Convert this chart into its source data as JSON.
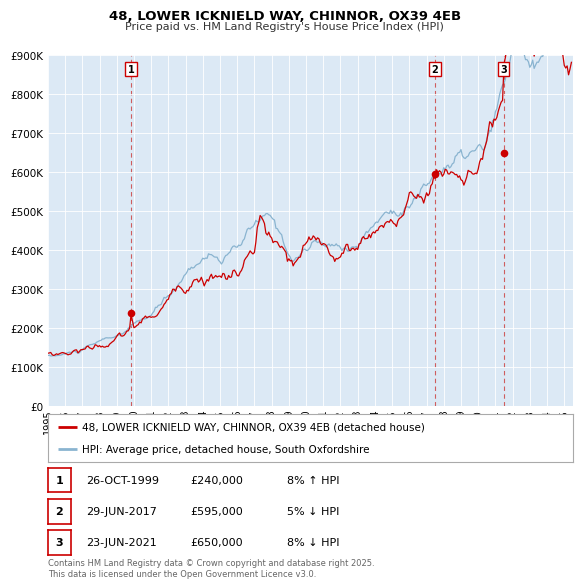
{
  "title": "48, LOWER ICKNIELD WAY, CHINNOR, OX39 4EB",
  "subtitle": "Price paid vs. HM Land Registry's House Price Index (HPI)",
  "fig_bg_color": "#ffffff",
  "plot_bg_color": "#dce9f5",
  "ylim": [
    0,
    900000
  ],
  "yticks": [
    0,
    100000,
    200000,
    300000,
    400000,
    500000,
    600000,
    700000,
    800000,
    900000
  ],
  "ytick_labels": [
    "£0",
    "£100K",
    "£200K",
    "£300K",
    "£400K",
    "£500K",
    "£600K",
    "£700K",
    "£800K",
    "£900K"
  ],
  "xlim_start": 1995.0,
  "xlim_end": 2025.5,
  "xtick_years": [
    1995,
    1996,
    1997,
    1998,
    1999,
    2000,
    2001,
    2002,
    2003,
    2004,
    2005,
    2006,
    2007,
    2008,
    2009,
    2010,
    2011,
    2012,
    2013,
    2014,
    2015,
    2016,
    2017,
    2018,
    2019,
    2020,
    2021,
    2022,
    2023,
    2024,
    2025
  ],
  "sale_color": "#cc0000",
  "hpi_color": "#8ab4d0",
  "sale_label": "48, LOWER ICKNIELD WAY, CHINNOR, OX39 4EB (detached house)",
  "hpi_label": "HPI: Average price, detached house, South Oxfordshire",
  "transactions": [
    {
      "num": 1,
      "date_dec": 1999.82,
      "price": 240000,
      "date_str": "26-OCT-1999",
      "pct": "8%",
      "dir": "↑"
    },
    {
      "num": 2,
      "date_dec": 2017.49,
      "price": 595000,
      "date_str": "29-JUN-2017",
      "pct": "5%",
      "dir": "↓"
    },
    {
      "num": 3,
      "date_dec": 2021.48,
      "price": 650000,
      "date_str": "23-JUN-2021",
      "pct": "8%",
      "dir": "↓"
    }
  ],
  "footer": "Contains HM Land Registry data © Crown copyright and database right 2025.\nThis data is licensed under the Open Government Licence v3.0."
}
